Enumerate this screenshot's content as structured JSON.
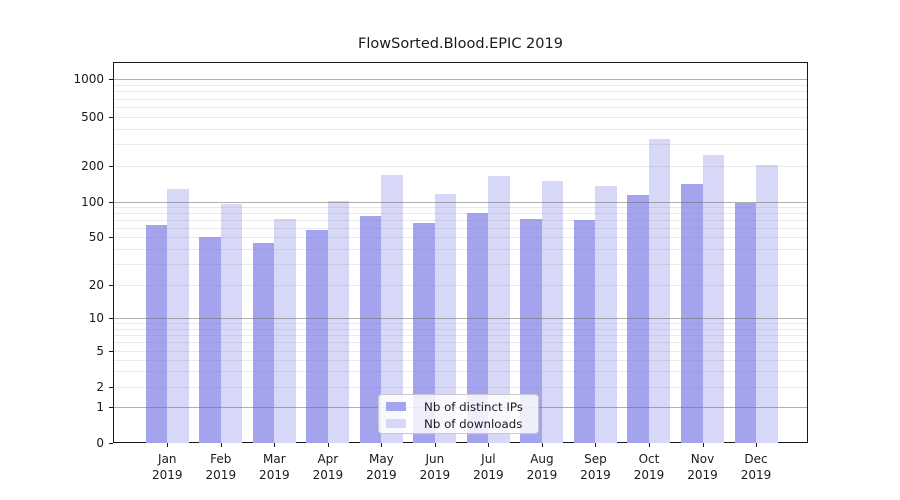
{
  "chart_data": {
    "type": "bar",
    "title": "FlowSorted.Blood.EPIC 2019",
    "year": "2019",
    "months": [
      "Jan",
      "Feb",
      "Mar",
      "Apr",
      "May",
      "Jun",
      "Jul",
      "Aug",
      "Sep",
      "Oct",
      "Nov",
      "Dec"
    ],
    "categories": [
      "Jan 2019",
      "Feb 2019",
      "Mar 2019",
      "Apr 2019",
      "May 2019",
      "Jun 2019",
      "Jul 2019",
      "Aug 2019",
      "Sep 2019",
      "Oct 2019",
      "Nov 2019",
      "Dec 2019"
    ],
    "series": [
      {
        "name": "Nb of distinct IPs",
        "color": "#a4a4ee",
        "values": [
          63,
          50,
          45,
          58,
          76,
          66,
          81,
          72,
          70,
          115,
          141,
          99
        ]
      },
      {
        "name": "Nb of downloads",
        "color": "#d7d7f7",
        "values": [
          128,
          97,
          71,
          102,
          168,
          116,
          165,
          149,
          136,
          330,
          245,
          205
        ]
      }
    ],
    "xlabel": "",
    "ylabel": "",
    "yticks": [
      0,
      1,
      2,
      5,
      10,
      20,
      50,
      100,
      200,
      500,
      1000
    ],
    "yscale": "symlog (linear 0-1, log above 1)",
    "ylim": [
      0,
      1380
    ],
    "grid": true,
    "grid_major_at": [
      1,
      10,
      100,
      1000
    ],
    "legend_position": "lower center"
  },
  "legend": {
    "items": [
      {
        "label": "Nb of distinct IPs",
        "color": "#a4a4ee"
      },
      {
        "label": "Nb of downloads",
        "color": "#d7d7f7"
      }
    ]
  },
  "colors": {
    "bar_distinct_ips": "#a4a4ee",
    "bar_downloads": "#d7d7f7",
    "spine": "#1a1a1a",
    "grid_major": "#8e8e8e",
    "grid_minor": "#e4e4e4",
    "legend_border": "#c9c9c9",
    "text": "#1a1a1a",
    "background": "#ffffff"
  }
}
